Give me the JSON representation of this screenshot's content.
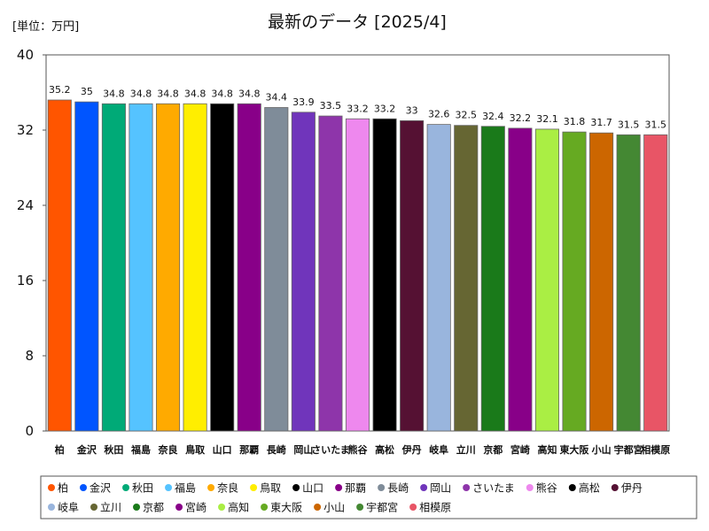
{
  "chart_data": {
    "type": "bar",
    "title": "最新のデータ [2025/4]",
    "unit_label": "[単位：万円]",
    "xlabel": "",
    "ylabel": "",
    "ylim": [
      0,
      40
    ],
    "yticks": [
      "0",
      "8",
      "16",
      "24",
      "32",
      "40"
    ],
    "grid": false,
    "legend_position": "bottom",
    "categories": [
      "柏",
      "金沢",
      "秋田",
      "福島",
      "奈良",
      "鳥取",
      "山口",
      "那覇",
      "長崎",
      "岡山",
      "さいたま",
      "熊谷",
      "高松",
      "伊丹",
      "岐阜",
      "立川",
      "京都",
      "宮崎",
      "高知",
      "東大阪",
      "小山",
      "宇都宮",
      "相模原"
    ],
    "values": [
      35.2,
      35,
      34.8,
      34.8,
      34.8,
      34.8,
      34.8,
      34.8,
      34.4,
      33.9,
      33.5,
      33.2,
      33.2,
      33,
      32.6,
      32.5,
      32.4,
      32.2,
      32.1,
      31.8,
      31.7,
      31.5,
      31.5
    ],
    "value_labels": [
      "35.2",
      "35",
      "34.8",
      "34.8",
      "34.8",
      "34.8",
      "34.8",
      "34.8",
      "34.4",
      "33.9",
      "33.5",
      "33.2",
      "33.2",
      "33",
      "32.6",
      "32.5",
      "32.4",
      "32.2",
      "32.1",
      "31.8",
      "31.7",
      "31.5",
      "31.5"
    ],
    "x_tick_labels": [
      "柏",
      "金沢",
      "秋田",
      "福島",
      "奈良",
      "鳥取",
      "山口",
      "那覇",
      "長崎",
      "岡山",
      "さいたま",
      "熊谷",
      "高松",
      "伊丹",
      "岐阜",
      "立川",
      "京都",
      "宮崎",
      "高知",
      "東大阪",
      "小山",
      "宇都宮",
      "相模原"
    ],
    "colors": [
      "#ff5500",
      "#0055ff",
      "#00aa77",
      "#55c3ff",
      "#ffaa00",
      "#ffee00",
      "#000000",
      "#880088",
      "#7f8c99",
      "#7035bb",
      "#8e35aa",
      "#ee88ee",
      "#000000",
      "#551133",
      "#99b5dd",
      "#666633",
      "#1a7a1a",
      "#880088",
      "#aaee44",
      "#66aa22",
      "#cc6600",
      "#448833",
      "#e85566"
    ]
  }
}
